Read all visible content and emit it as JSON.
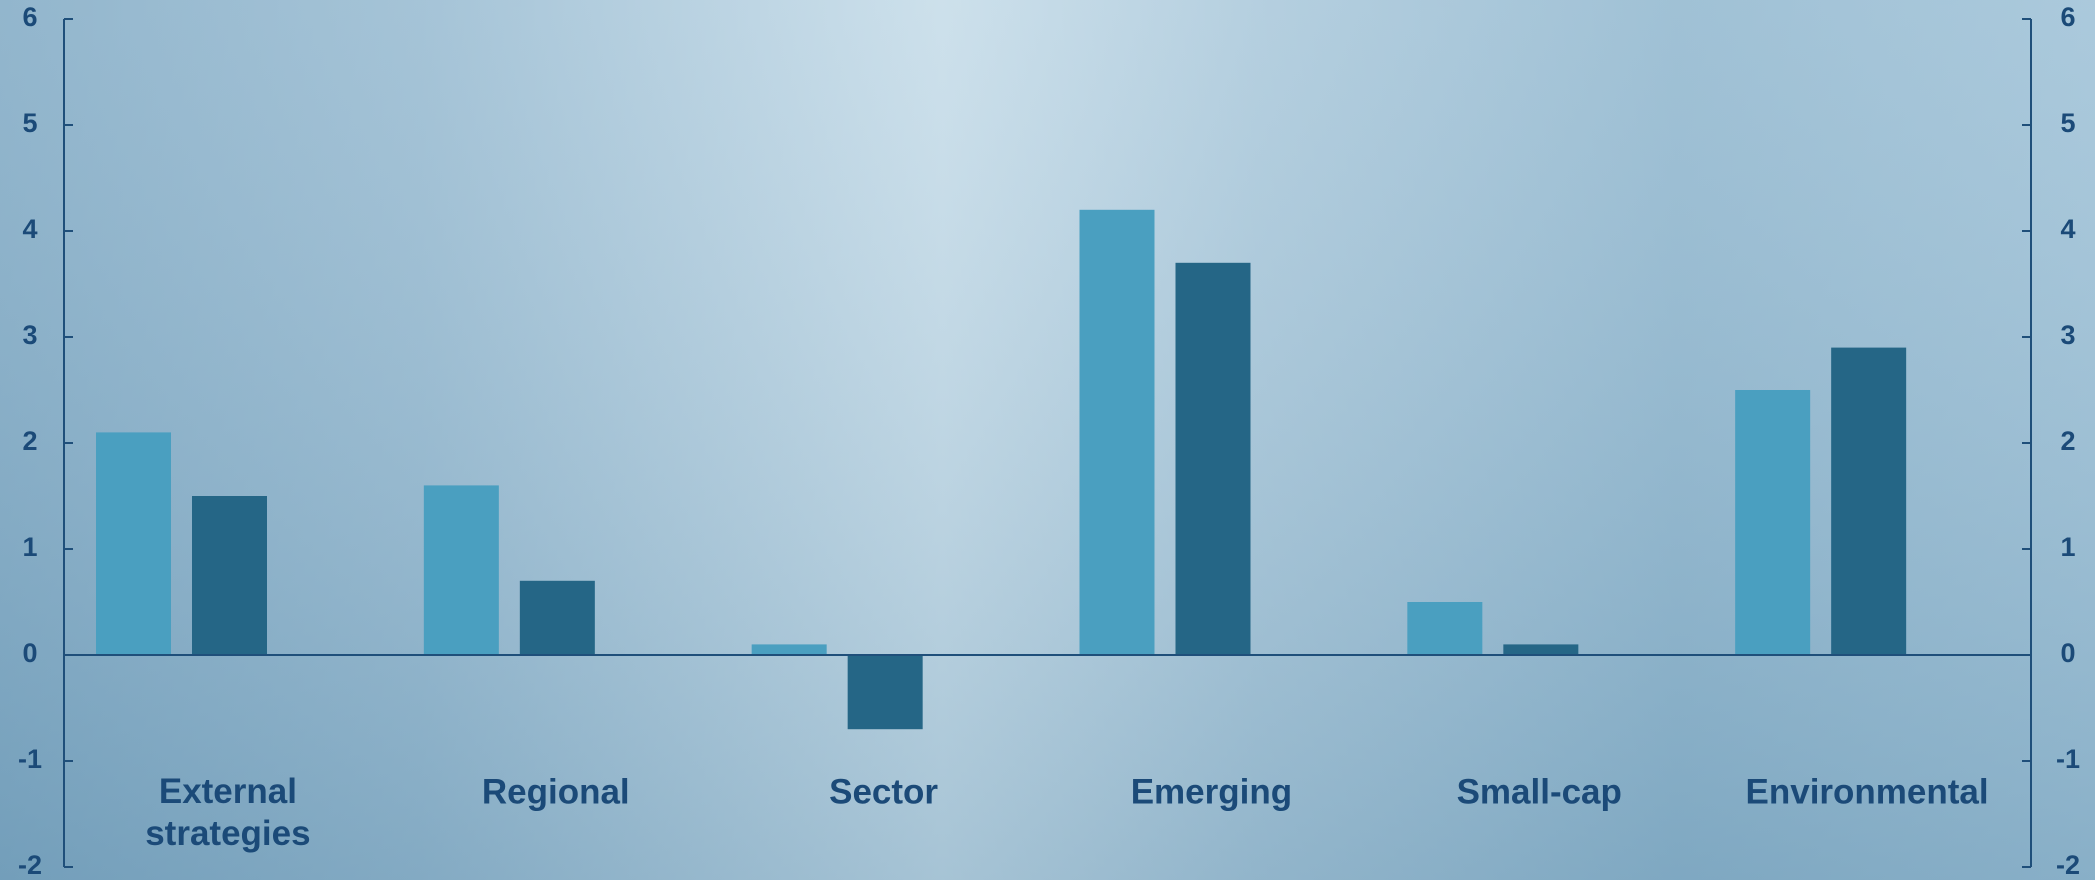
{
  "chart_data": {
    "type": "bar",
    "categories": [
      "External strategies",
      "Regional",
      "Sector",
      "Emerging",
      "Small-cap",
      "Environmental"
    ],
    "series": [
      {
        "color": "#4a9fc0",
        "values": [
          2.1,
          1.6,
          0.1,
          4.2,
          0.5,
          2.5
        ]
      },
      {
        "color": "#256686",
        "values": [
          1.5,
          0.7,
          -0.7,
          3.7,
          0.1,
          2.9
        ]
      }
    ],
    "ylim": [
      -2,
      6
    ],
    "yticks": [
      -2,
      -1,
      0,
      1,
      2,
      3,
      4,
      5,
      6
    ],
    "y2lim": [
      -2,
      6
    ],
    "y2ticks": [
      -2,
      -1,
      0,
      1,
      2,
      3,
      4,
      5,
      6
    ],
    "grid": false
  }
}
